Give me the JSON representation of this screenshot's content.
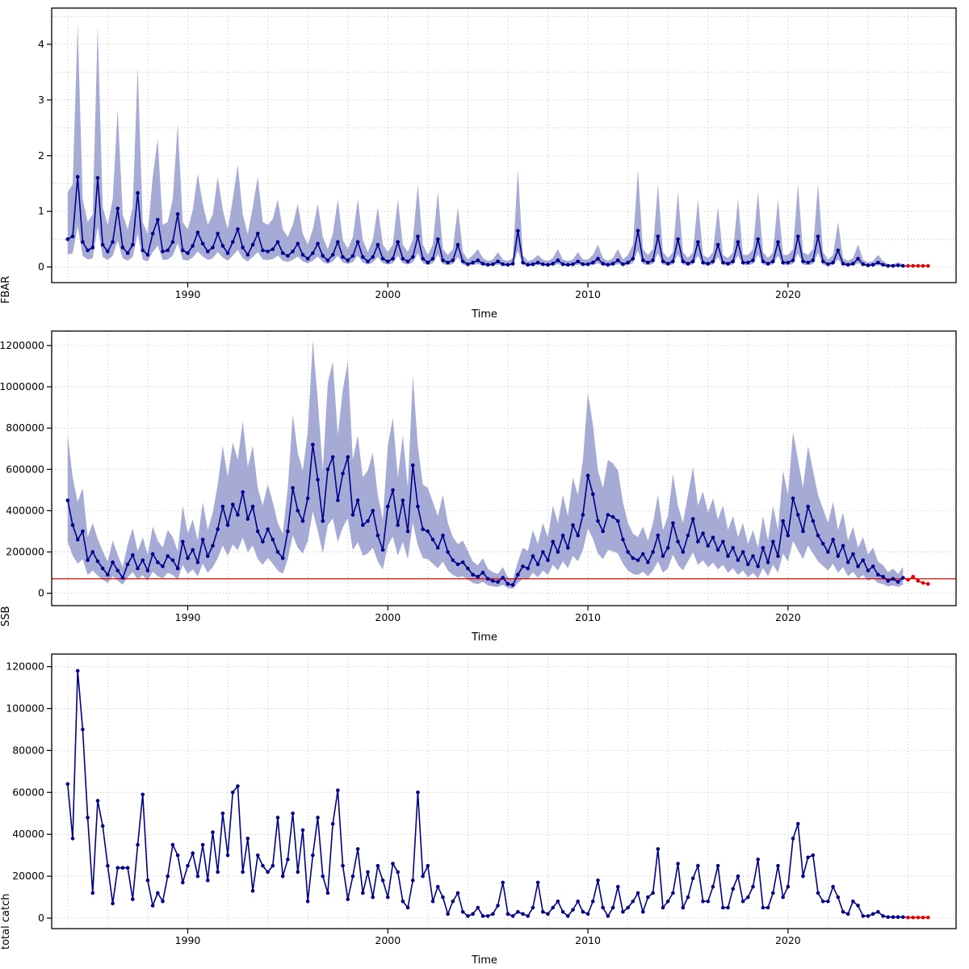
{
  "style": {
    "background": "#ffffff",
    "line_color": "#00008B",
    "forecast_color": "#E60000",
    "band_color": "#959CCE",
    "band_opacity": 0.85,
    "grid_color": "#BFBFBF",
    "ref_line_color": "#E60000",
    "axis_color": "#000000"
  },
  "chart_data": {
    "type": "line",
    "description": "Three stacked quarterly time-series panels (stock assessment summary): FBAR, SSB with reference line, total catch. Dark blue line with points, light blue confidence band on first two panels, red points = forecast period.",
    "x_label": "Time",
    "xlim": [
      1983.2,
      2028.4
    ],
    "x_ticks": [
      1990,
      2000,
      2010,
      2020
    ],
    "grid_x": {
      "start": 1984,
      "step": 2,
      "end": 2026
    },
    "x": [
      1984,
      1984.25,
      1984.5,
      1984.75,
      1985,
      1985.25,
      1985.5,
      1985.75,
      1986,
      1986.25,
      1986.5,
      1986.75,
      1987,
      1987.25,
      1987.5,
      1987.75,
      1988,
      1988.25,
      1988.5,
      1988.75,
      1989,
      1989.25,
      1989.5,
      1989.75,
      1990,
      1990.25,
      1990.5,
      1990.75,
      1991,
      1991.25,
      1991.5,
      1991.75,
      1992,
      1992.25,
      1992.5,
      1992.75,
      1993,
      1993.25,
      1993.5,
      1993.75,
      1994,
      1994.25,
      1994.5,
      1994.75,
      1995,
      1995.25,
      1995.5,
      1995.75,
      1996,
      1996.25,
      1996.5,
      1996.75,
      1997,
      1997.25,
      1997.5,
      1997.75,
      1998,
      1998.25,
      1998.5,
      1998.75,
      1999,
      1999.25,
      1999.5,
      1999.75,
      2000,
      2000.25,
      2000.5,
      2000.75,
      2001,
      2001.25,
      2001.5,
      2001.75,
      2002,
      2002.25,
      2002.5,
      2002.75,
      2003,
      2003.25,
      2003.5,
      2003.75,
      2004,
      2004.25,
      2004.5,
      2004.75,
      2005,
      2005.25,
      2005.5,
      2005.75,
      2006,
      2006.25,
      2006.5,
      2006.75,
      2007,
      2007.25,
      2007.5,
      2007.75,
      2008,
      2008.25,
      2008.5,
      2008.75,
      2009,
      2009.25,
      2009.5,
      2009.75,
      2010,
      2010.25,
      2010.5,
      2010.75,
      2011,
      2011.25,
      2011.5,
      2011.75,
      2012,
      2012.25,
      2012.5,
      2012.75,
      2013,
      2013.25,
      2013.5,
      2013.75,
      2014,
      2014.25,
      2014.5,
      2014.75,
      2015,
      2015.25,
      2015.5,
      2015.75,
      2016,
      2016.25,
      2016.5,
      2016.75,
      2017,
      2017.25,
      2017.5,
      2017.75,
      2018,
      2018.25,
      2018.5,
      2018.75,
      2019,
      2019.25,
      2019.5,
      2019.75,
      2020,
      2020.25,
      2020.5,
      2020.75,
      2021,
      2021.25,
      2021.5,
      2021.75,
      2022,
      2022.25,
      2022.5,
      2022.75,
      2023,
      2023.25,
      2023.5,
      2023.75,
      2024,
      2024.25,
      2024.5,
      2024.75,
      2025,
      2025.25,
      2025.5,
      2025.75,
      2026,
      2026.25,
      2026.5,
      2026.75,
      2027
    ],
    "panels": [
      {
        "ylabel": "FBAR",
        "ylim": [
          -0.28,
          4.65
        ],
        "yticks": [
          0,
          1,
          2,
          3,
          4
        ],
        "grid_y": {
          "start": 0,
          "step": 0.5,
          "end": 4.5
        },
        "n_forecast": 5,
        "band": {
          "lo_factor": 0.45,
          "hi_factor": 2.7
        },
        "ref_y": null,
        "y": [
          0.5,
          0.55,
          1.62,
          0.45,
          0.3,
          0.35,
          1.6,
          0.4,
          0.28,
          0.45,
          1.05,
          0.35,
          0.25,
          0.4,
          1.33,
          0.3,
          0.22,
          0.6,
          0.85,
          0.28,
          0.3,
          0.45,
          0.95,
          0.3,
          0.25,
          0.38,
          0.62,
          0.42,
          0.28,
          0.35,
          0.6,
          0.38,
          0.25,
          0.45,
          0.68,
          0.35,
          0.22,
          0.4,
          0.6,
          0.3,
          0.28,
          0.32,
          0.45,
          0.25,
          0.2,
          0.28,
          0.42,
          0.22,
          0.15,
          0.25,
          0.42,
          0.2,
          0.12,
          0.22,
          0.45,
          0.18,
          0.12,
          0.2,
          0.45,
          0.18,
          0.1,
          0.18,
          0.4,
          0.15,
          0.1,
          0.15,
          0.45,
          0.15,
          0.1,
          0.18,
          0.55,
          0.15,
          0.08,
          0.15,
          0.5,
          0.12,
          0.08,
          0.12,
          0.4,
          0.1,
          0.05,
          0.08,
          0.12,
          0.06,
          0.04,
          0.05,
          0.1,
          0.05,
          0.04,
          0.06,
          0.65,
          0.08,
          0.04,
          0.05,
          0.08,
          0.05,
          0.04,
          0.06,
          0.12,
          0.05,
          0.04,
          0.05,
          0.1,
          0.05,
          0.05,
          0.08,
          0.15,
          0.06,
          0.04,
          0.06,
          0.12,
          0.05,
          0.08,
          0.15,
          0.65,
          0.12,
          0.08,
          0.12,
          0.55,
          0.1,
          0.06,
          0.1,
          0.5,
          0.1,
          0.06,
          0.1,
          0.45,
          0.08,
          0.06,
          0.1,
          0.4,
          0.08,
          0.06,
          0.1,
          0.45,
          0.08,
          0.08,
          0.12,
          0.5,
          0.1,
          0.06,
          0.1,
          0.45,
          0.08,
          0.08,
          0.12,
          0.55,
          0.1,
          0.08,
          0.12,
          0.55,
          0.1,
          0.05,
          0.08,
          0.3,
          0.06,
          0.04,
          0.06,
          0.15,
          0.05,
          0.03,
          0.04,
          0.08,
          0.04,
          0.02,
          0.02,
          0.03,
          0.02,
          0.02,
          0.02,
          0.02,
          0.02,
          0.02
        ]
      },
      {
        "ylabel": "SSB",
        "ylim": [
          -60000,
          1270000
        ],
        "yticks": [
          0,
          200000,
          400000,
          600000,
          800000,
          1000000,
          1200000
        ],
        "grid_y": {
          "start": 0,
          "step": 200000,
          "end": 1200000
        },
        "n_forecast": 5,
        "band": {
          "lo_factor": 0.55,
          "hi_factor": 1.7
        },
        "ref_y": 70000,
        "y": [
          450000,
          330000,
          260000,
          300000,
          160000,
          200000,
          155000,
          120000,
          90000,
          150000,
          110000,
          75000,
          140000,
          185000,
          120000,
          160000,
          110000,
          190000,
          150000,
          130000,
          180000,
          160000,
          120000,
          250000,
          170000,
          210000,
          150000,
          260000,
          180000,
          230000,
          310000,
          420000,
          330000,
          430000,
          380000,
          490000,
          360000,
          420000,
          300000,
          250000,
          310000,
          260000,
          200000,
          170000,
          300000,
          510000,
          400000,
          350000,
          460000,
          720000,
          550000,
          350000,
          600000,
          660000,
          450000,
          580000,
          660000,
          380000,
          450000,
          330000,
          350000,
          400000,
          280000,
          210000,
          420000,
          500000,
          330000,
          450000,
          300000,
          620000,
          420000,
          310000,
          300000,
          260000,
          220000,
          280000,
          200000,
          160000,
          140000,
          150000,
          120000,
          90000,
          80000,
          100000,
          70000,
          60000,
          55000,
          75000,
          45000,
          40000,
          90000,
          130000,
          120000,
          180000,
          140000,
          200000,
          160000,
          250000,
          200000,
          280000,
          220000,
          330000,
          280000,
          380000,
          570000,
          480000,
          350000,
          300000,
          380000,
          370000,
          350000,
          260000,
          200000,
          170000,
          160000,
          190000,
          150000,
          200000,
          280000,
          180000,
          220000,
          340000,
          250000,
          200000,
          280000,
          360000,
          250000,
          290000,
          230000,
          270000,
          210000,
          250000,
          180000,
          220000,
          160000,
          200000,
          140000,
          180000,
          130000,
          220000,
          150000,
          250000,
          180000,
          350000,
          280000,
          460000,
          380000,
          300000,
          420000,
          350000,
          280000,
          240000,
          200000,
          260000,
          180000,
          230000,
          150000,
          190000,
          130000,
          160000,
          110000,
          130000,
          90000,
          80000,
          60000,
          70000,
          55000,
          75000,
          65000,
          80000,
          60000,
          50000,
          45000
        ]
      },
      {
        "ylabel": "total catch",
        "ylim": [
          -5000,
          126000
        ],
        "yticks": [
          0,
          20000,
          40000,
          60000,
          80000,
          100000,
          120000
        ],
        "grid_y": {
          "start": 0,
          "step": 20000,
          "end": 120000
        },
        "n_forecast": 5,
        "band": null,
        "ref_y": null,
        "y": [
          64000,
          38000,
          118000,
          90000,
          48000,
          12000,
          56000,
          44000,
          25000,
          7000,
          24000,
          24000,
          24000,
          9000,
          35000,
          59000,
          18000,
          6000,
          12000,
          8000,
          20000,
          35000,
          30000,
          17000,
          25000,
          31000,
          20000,
          35000,
          18000,
          41000,
          22000,
          50000,
          30000,
          60000,
          63000,
          22000,
          38000,
          13000,
          30000,
          25000,
          22000,
          25000,
          48000,
          20000,
          28000,
          50000,
          22000,
          42000,
          8000,
          30000,
          48000,
          20000,
          12000,
          45000,
          61000,
          25000,
          9000,
          20000,
          33000,
          12000,
          22000,
          10000,
          25000,
          18000,
          10000,
          26000,
          22000,
          8000,
          5000,
          18000,
          60000,
          20000,
          25000,
          8000,
          15000,
          10000,
          2000,
          8000,
          12000,
          3000,
          1000,
          2000,
          5000,
          1000,
          1000,
          2000,
          6000,
          17000,
          2000,
          1000,
          3000,
          2000,
          1000,
          5000,
          17000,
          3000,
          2000,
          5000,
          8000,
          3000,
          1000,
          4000,
          8000,
          3000,
          2000,
          8000,
          18000,
          5000,
          1000,
          5000,
          15000,
          3000,
          5000,
          8000,
          12000,
          3000,
          10000,
          12000,
          33000,
          5000,
          8000,
          12000,
          26000,
          5000,
          10000,
          19000,
          25000,
          8000,
          8000,
          15000,
          25000,
          5000,
          5000,
          14000,
          20000,
          8000,
          10000,
          15000,
          28000,
          5000,
          5000,
          12000,
          25000,
          10000,
          15000,
          38000,
          45000,
          20000,
          29000,
          30000,
          12000,
          8000,
          8000,
          15000,
          10000,
          3000,
          2000,
          8000,
          6000,
          1000,
          1000,
          2000,
          3000,
          1000,
          500,
          500,
          500,
          500,
          300,
          300,
          300,
          300,
          300
        ]
      }
    ]
  }
}
